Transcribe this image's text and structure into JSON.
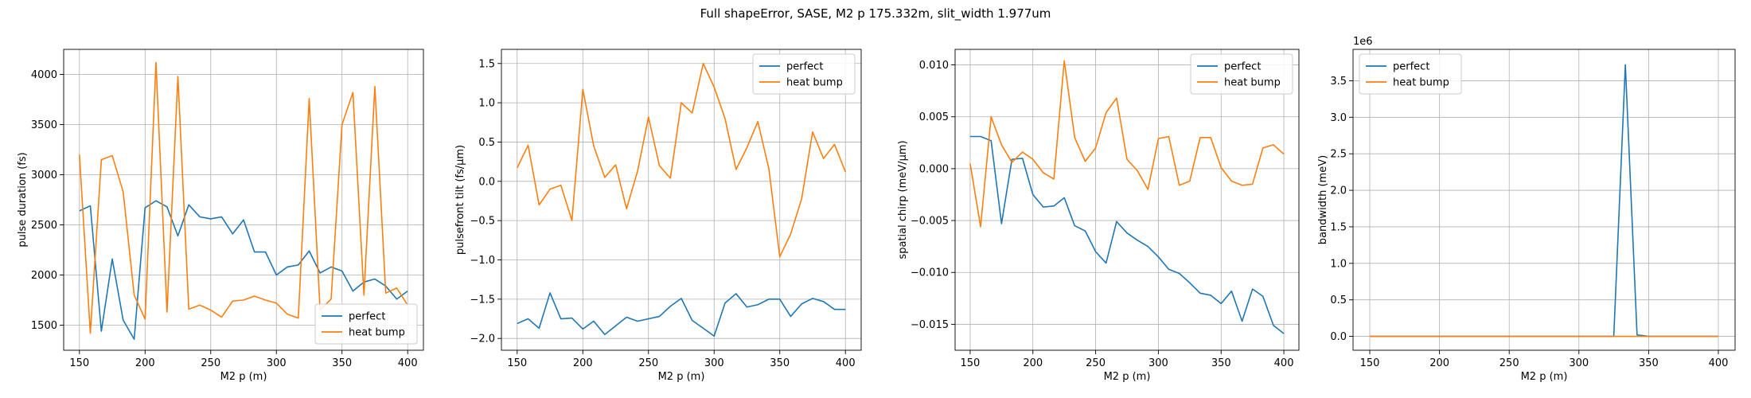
{
  "suptitle": "Full shapeError, SASE, M2 p 175.332m, slit_width 1.977um",
  "series_colors": {
    "perfect": "#1f77b4",
    "heat bump": "#ff7f0e"
  },
  "chart_data": [
    {
      "type": "line",
      "xlabel": "M2 p (m)",
      "ylabel": "pulse duration (fs)",
      "xlim": [
        138,
        412
      ],
      "ylim": [
        1250,
        4250
      ],
      "xticks": [
        150,
        200,
        250,
        300,
        350,
        400
      ],
      "yticks": [
        1500,
        2000,
        2500,
        3000,
        3500,
        4000
      ],
      "ytick_labels": [
        "1500",
        "2000",
        "2500",
        "3000",
        "3500",
        "4000"
      ],
      "offset_text": "",
      "grid": true,
      "legend_loc": "lower-right",
      "x": [
        150,
        158.3,
        166.7,
        175,
        183.3,
        191.7,
        200,
        208.3,
        216.7,
        225,
        233.3,
        241.7,
        250,
        258.3,
        266.7,
        275,
        283.3,
        291.7,
        300,
        308.3,
        316.7,
        325,
        333.3,
        341.7,
        350,
        358.3,
        366.7,
        375,
        383.3,
        391.7,
        400
      ],
      "series": [
        {
          "name": "perfect",
          "values": [
            2640,
            2690,
            1440,
            2160,
            1550,
            1360,
            2670,
            2740,
            2680,
            2390,
            2700,
            2580,
            2560,
            2580,
            2410,
            2550,
            2230,
            2230,
            2000,
            2080,
            2100,
            2240,
            2020,
            2080,
            2040,
            1840,
            1930,
            1960,
            1890,
            1760,
            1840
          ]
        },
        {
          "name": "heat bump",
          "values": [
            3200,
            1420,
            3150,
            3190,
            2830,
            1800,
            1560,
            4120,
            1630,
            3980,
            1660,
            1700,
            1650,
            1580,
            1740,
            1750,
            1790,
            1750,
            1720,
            1610,
            1570,
            3760,
            1650,
            1760,
            3500,
            3820,
            1800,
            3880,
            1820,
            1870,
            1700
          ]
        }
      ]
    },
    {
      "type": "line",
      "xlabel": "M2 p (m)",
      "ylabel": "pulsefront tilt (fs/µm)",
      "xlim": [
        138,
        412
      ],
      "ylim": [
        -2.15,
        1.68
      ],
      "xticks": [
        150,
        200,
        250,
        300,
        350,
        400
      ],
      "yticks": [
        -2.0,
        -1.5,
        -1.0,
        -0.5,
        0.0,
        0.5,
        1.0,
        1.5
      ],
      "ytick_labels": [
        "−2.0",
        "−1.5",
        "−1.0",
        "−0.5",
        "0.0",
        "0.5",
        "1.0",
        "1.5"
      ],
      "offset_text": "",
      "grid": true,
      "legend_loc": "upper-right",
      "x": [
        150,
        158.3,
        166.7,
        175,
        183.3,
        191.7,
        200,
        208.3,
        216.7,
        225,
        233.3,
        241.7,
        250,
        258.3,
        266.7,
        275,
        283.3,
        291.7,
        300,
        308.3,
        316.7,
        325,
        333.3,
        341.7,
        350,
        358.3,
        366.7,
        375,
        383.3,
        391.7,
        400
      ],
      "series": [
        {
          "name": "perfect",
          "values": [
            -1.81,
            -1.75,
            -1.87,
            -1.42,
            -1.75,
            -1.74,
            -1.88,
            -1.78,
            -1.95,
            -1.84,
            -1.73,
            -1.78,
            -1.75,
            -1.72,
            -1.59,
            -1.49,
            -1.77,
            -1.87,
            -1.97,
            -1.55,
            -1.43,
            -1.6,
            -1.57,
            -1.5,
            -1.5,
            -1.72,
            -1.56,
            -1.49,
            -1.53,
            -1.63,
            -1.63
          ]
        },
        {
          "name": "heat bump",
          "values": [
            0.17,
            0.46,
            -0.3,
            -0.1,
            -0.05,
            -0.5,
            1.17,
            0.45,
            0.05,
            0.21,
            -0.35,
            0.13,
            0.82,
            0.2,
            0.04,
            1.0,
            0.87,
            1.5,
            1.2,
            0.8,
            0.15,
            0.43,
            0.76,
            0.16,
            -0.96,
            -0.67,
            -0.22,
            0.63,
            0.29,
            0.47,
            0.12
          ]
        }
      ]
    },
    {
      "type": "line",
      "xlabel": "M2 p (m)",
      "ylabel": "spatial chirp (meV/µm)",
      "xlim": [
        138,
        412
      ],
      "ylim": [
        -0.0175,
        0.0115
      ],
      "xticks": [
        150,
        200,
        250,
        300,
        350,
        400
      ],
      "yticks": [
        -0.015,
        -0.01,
        -0.005,
        0.0,
        0.005,
        0.01
      ],
      "ytick_labels": [
        "−0.015",
        "−0.010",
        "−0.005",
        "0.000",
        "0.005",
        "0.010"
      ],
      "offset_text": "",
      "grid": true,
      "legend_loc": "upper-right",
      "x": [
        150,
        158.3,
        166.7,
        175,
        183.3,
        191.7,
        200,
        208.3,
        216.7,
        225,
        233.3,
        241.7,
        250,
        258.3,
        266.7,
        275,
        283.3,
        291.7,
        300,
        308.3,
        316.7,
        325,
        333.3,
        341.7,
        350,
        358.3,
        366.7,
        375,
        383.3,
        391.7,
        400
      ],
      "series": [
        {
          "name": "perfect",
          "values": [
            0.0031,
            0.0031,
            0.0027,
            -0.0053,
            0.0009,
            0.001,
            -0.0025,
            -0.0037,
            -0.0036,
            -0.0028,
            -0.0055,
            -0.006,
            -0.008,
            -0.0091,
            -0.0051,
            -0.0062,
            -0.0069,
            -0.0075,
            -0.0085,
            -0.0097,
            -0.0101,
            -0.011,
            -0.012,
            -0.0122,
            -0.013,
            -0.0118,
            -0.0147,
            -0.0116,
            -0.0123,
            -0.0151,
            -0.0159
          ]
        },
        {
          "name": "heat bump",
          "values": [
            0.0005,
            -0.0056,
            0.005,
            0.0023,
            0.0006,
            0.0016,
            0.0009,
            -0.0004,
            -0.001,
            0.0104,
            0.003,
            0.0007,
            0.002,
            0.0054,
            0.0068,
            0.0009,
            -0.0002,
            -0.002,
            0.0029,
            0.0031,
            -0.0016,
            -0.0012,
            0.003,
            0.003,
            0.0001,
            -0.0012,
            -0.0016,
            -0.0015,
            0.002,
            0.0023,
            0.0014
          ]
        }
      ]
    },
    {
      "type": "line",
      "xlabel": "M2 p (m)",
      "ylabel": "bandwidth (meV)",
      "xlim": [
        138,
        412
      ],
      "ylim": [
        -0.19,
        3.93
      ],
      "xticks": [
        150,
        200,
        250,
        300,
        350,
        400
      ],
      "yticks": [
        0.0,
        0.5,
        1.0,
        1.5,
        2.0,
        2.5,
        3.0,
        3.5
      ],
      "ytick_labels": [
        "0.0",
        "0.5",
        "1.0",
        "1.5",
        "2.0",
        "2.5",
        "3.0",
        "3.5"
      ],
      "offset_text": "1e6",
      "grid": true,
      "legend_loc": "upper-left",
      "x": [
        150,
        158.3,
        166.7,
        175,
        183.3,
        191.7,
        200,
        208.3,
        216.7,
        225,
        233.3,
        241.7,
        250,
        258.3,
        266.7,
        275,
        283.3,
        291.7,
        300,
        308.3,
        316.7,
        325,
        333.3,
        341.7,
        350,
        358.3,
        366.7,
        375,
        383.3,
        391.7,
        400
      ],
      "series": [
        {
          "name": "perfect",
          "values": [
            0,
            0,
            0,
            0,
            0,
            0,
            0,
            0,
            0,
            0,
            0,
            0,
            0,
            0,
            0,
            0,
            0,
            0,
            0,
            0,
            0,
            0,
            3.72,
            0.02,
            0,
            0,
            0,
            0,
            0,
            0,
            0
          ]
        },
        {
          "name": "heat bump",
          "values": [
            0,
            0,
            0,
            0,
            0,
            0,
            0,
            0,
            0,
            0,
            0,
            0,
            0,
            0,
            0,
            0,
            0,
            0,
            0,
            0,
            0,
            0,
            0,
            0,
            0,
            0,
            0,
            0,
            0,
            0,
            0
          ]
        }
      ]
    }
  ]
}
